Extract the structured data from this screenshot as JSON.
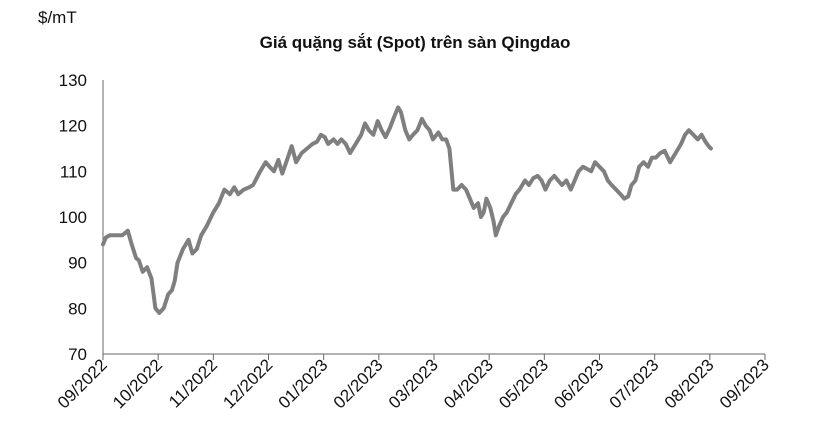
{
  "chart_data": {
    "type": "line",
    "title": "Giá quặng sắt (Spot) trên sàn Qingdao",
    "ylabel": "$/mT",
    "xlabel": "",
    "ylim": [
      70,
      130
    ],
    "yticks": [
      70,
      80,
      90,
      100,
      110,
      120,
      130
    ],
    "categories": [
      "09/2022",
      "10/2022",
      "11/2022",
      "12/2022",
      "01/2023",
      "02/2023",
      "03/2023",
      "04/2023",
      "05/2023",
      "06/2023",
      "07/2023",
      "08/2023",
      "09/2023"
    ],
    "grid": false,
    "legend": "none",
    "line_color": "#7f7f7f",
    "series": [
      {
        "values": [
          [
            0.0,
            94
          ],
          [
            0.05,
            95.5
          ],
          [
            0.12,
            96
          ],
          [
            0.35,
            96
          ],
          [
            0.45,
            97
          ],
          [
            0.52,
            94
          ],
          [
            0.6,
            91
          ],
          [
            0.65,
            90.5
          ],
          [
            0.72,
            88
          ],
          [
            0.8,
            89
          ],
          [
            0.88,
            86.5
          ],
          [
            0.95,
            80
          ],
          [
            1.02,
            79
          ],
          [
            1.1,
            80
          ],
          [
            1.18,
            83
          ],
          [
            1.25,
            84
          ],
          [
            1.3,
            86
          ],
          [
            1.35,
            90
          ],
          [
            1.45,
            93
          ],
          [
            1.55,
            95
          ],
          [
            1.62,
            92
          ],
          [
            1.7,
            93
          ],
          [
            1.78,
            96
          ],
          [
            1.88,
            98
          ],
          [
            2.0,
            101
          ],
          [
            2.1,
            103
          ],
          [
            2.2,
            106
          ],
          [
            2.3,
            105
          ],
          [
            2.38,
            106.5
          ],
          [
            2.45,
            105
          ],
          [
            2.55,
            106
          ],
          [
            2.65,
            106.5
          ],
          [
            2.72,
            107
          ],
          [
            2.85,
            110
          ],
          [
            2.95,
            112
          ],
          [
            3.02,
            111
          ],
          [
            3.1,
            110
          ],
          [
            3.18,
            112.5
          ],
          [
            3.25,
            109.5
          ],
          [
            3.35,
            113
          ],
          [
            3.42,
            115.5
          ],
          [
            3.5,
            112
          ],
          [
            3.6,
            114
          ],
          [
            3.7,
            115
          ],
          [
            3.8,
            116
          ],
          [
            3.88,
            116.5
          ],
          [
            3.95,
            118
          ],
          [
            4.02,
            117.5
          ],
          [
            4.08,
            116
          ],
          [
            4.18,
            117
          ],
          [
            4.25,
            116
          ],
          [
            4.32,
            117
          ],
          [
            4.4,
            116
          ],
          [
            4.48,
            114
          ],
          [
            4.58,
            116
          ],
          [
            4.68,
            118
          ],
          [
            4.75,
            120.5
          ],
          [
            4.82,
            119
          ],
          [
            4.9,
            118
          ],
          [
            4.98,
            121
          ],
          [
            5.05,
            119
          ],
          [
            5.12,
            117.5
          ],
          [
            5.2,
            119.5
          ],
          [
            5.28,
            122
          ],
          [
            5.35,
            124
          ],
          [
            5.4,
            123
          ],
          [
            5.48,
            119
          ],
          [
            5.55,
            117
          ],
          [
            5.62,
            118
          ],
          [
            5.7,
            119
          ],
          [
            5.78,
            121.5
          ],
          [
            5.85,
            120
          ],
          [
            5.92,
            119
          ],
          [
            5.98,
            117
          ],
          [
            6.08,
            118.5
          ],
          [
            6.15,
            117
          ],
          [
            6.22,
            117
          ],
          [
            6.28,
            115
          ],
          [
            6.35,
            106
          ],
          [
            6.42,
            106
          ],
          [
            6.5,
            107
          ],
          [
            6.58,
            106
          ],
          [
            6.65,
            104
          ],
          [
            6.72,
            102
          ],
          [
            6.8,
            103
          ],
          [
            6.85,
            100
          ],
          [
            6.9,
            101
          ],
          [
            6.95,
            104
          ],
          [
            7.02,
            102
          ],
          [
            7.08,
            99
          ],
          [
            7.12,
            96
          ],
          [
            7.18,
            98
          ],
          [
            7.25,
            100
          ],
          [
            7.32,
            101
          ],
          [
            7.4,
            103
          ],
          [
            7.48,
            105
          ],
          [
            7.55,
            106
          ],
          [
            7.65,
            108
          ],
          [
            7.72,
            107
          ],
          [
            7.8,
            108.5
          ],
          [
            7.88,
            109
          ],
          [
            7.95,
            108
          ],
          [
            8.02,
            106
          ],
          [
            8.1,
            108
          ],
          [
            8.18,
            109
          ],
          [
            8.25,
            108
          ],
          [
            8.32,
            107
          ],
          [
            8.4,
            108
          ],
          [
            8.48,
            106
          ],
          [
            8.55,
            108
          ],
          [
            8.62,
            110
          ],
          [
            8.7,
            111
          ],
          [
            8.78,
            110.5
          ],
          [
            8.85,
            110
          ],
          [
            8.92,
            112
          ],
          [
            9.0,
            111
          ],
          [
            9.08,
            110
          ],
          [
            9.15,
            108
          ],
          [
            9.22,
            107
          ],
          [
            9.3,
            106
          ],
          [
            9.38,
            105
          ],
          [
            9.45,
            104
          ],
          [
            9.52,
            104.5
          ],
          [
            9.58,
            107
          ],
          [
            9.65,
            108
          ],
          [
            9.72,
            111
          ],
          [
            9.8,
            112
          ],
          [
            9.88,
            111
          ],
          [
            9.95,
            113
          ],
          [
            10.02,
            113
          ],
          [
            10.1,
            114
          ],
          [
            10.18,
            114.5
          ],
          [
            10.28,
            112
          ],
          [
            10.38,
            114
          ],
          [
            10.48,
            116
          ],
          [
            10.55,
            118
          ],
          [
            10.62,
            119
          ],
          [
            10.7,
            118
          ],
          [
            10.78,
            117
          ],
          [
            10.85,
            118
          ],
          [
            10.92,
            116.5
          ],
          [
            10.98,
            115.5
          ],
          [
            11.02,
            115
          ]
        ]
      }
    ]
  }
}
